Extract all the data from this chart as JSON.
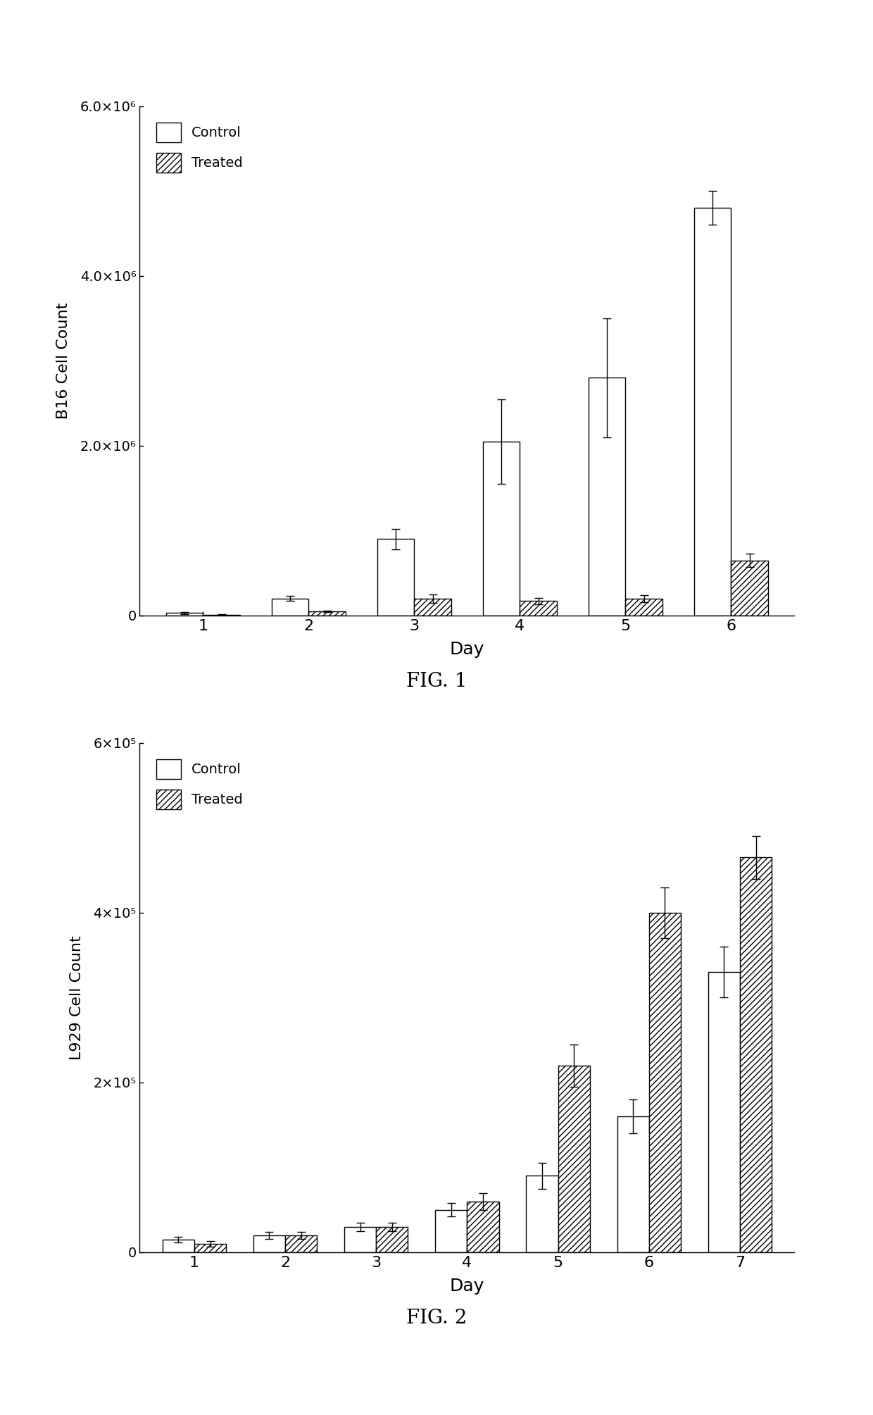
{
  "fig1": {
    "title": "FIG. 1",
    "ylabel": "B16 Cell Count",
    "xlabel": "Day",
    "days": [
      1,
      2,
      3,
      4,
      5,
      6
    ],
    "control_values": [
      30000,
      200000,
      900000,
      2050000,
      2800000,
      4800000
    ],
    "control_errors": [
      10000,
      30000,
      120000,
      500000,
      700000,
      200000
    ],
    "treated_values": [
      10000,
      50000,
      200000,
      170000,
      200000,
      650000
    ],
    "treated_errors": [
      5000,
      10000,
      50000,
      40000,
      40000,
      80000
    ],
    "ylim": [
      0,
      6000000
    ],
    "yticks": [
      0,
      2000000,
      4000000,
      6000000
    ],
    "ytick_labels": [
      "0",
      "2.0×10⁶",
      "4.0×10⁶",
      "6.0×10⁶"
    ]
  },
  "fig2": {
    "title": "FIG. 2",
    "ylabel": "L929 Cell Count",
    "xlabel": "Day",
    "days": [
      1,
      2,
      3,
      4,
      5,
      6,
      7
    ],
    "control_values": [
      15000,
      20000,
      30000,
      50000,
      90000,
      160000,
      330000
    ],
    "control_errors": [
      3000,
      4000,
      5000,
      8000,
      15000,
      20000,
      30000
    ],
    "treated_values": [
      10000,
      20000,
      30000,
      60000,
      220000,
      400000,
      465000
    ],
    "treated_errors": [
      3000,
      4000,
      5000,
      10000,
      25000,
      30000,
      25000
    ],
    "ylim": [
      0,
      600000
    ],
    "yticks": [
      0,
      200000,
      400000,
      600000
    ],
    "ytick_labels": [
      "0",
      "2×10⁵",
      "4×10⁵",
      "6×10⁵"
    ]
  },
  "bar_width": 0.35,
  "control_color": "white",
  "treated_hatch": "////",
  "edgecolor": "black",
  "background_color": "white",
  "legend_labels": [
    "Control",
    "Treated"
  ],
  "capsize": 4
}
